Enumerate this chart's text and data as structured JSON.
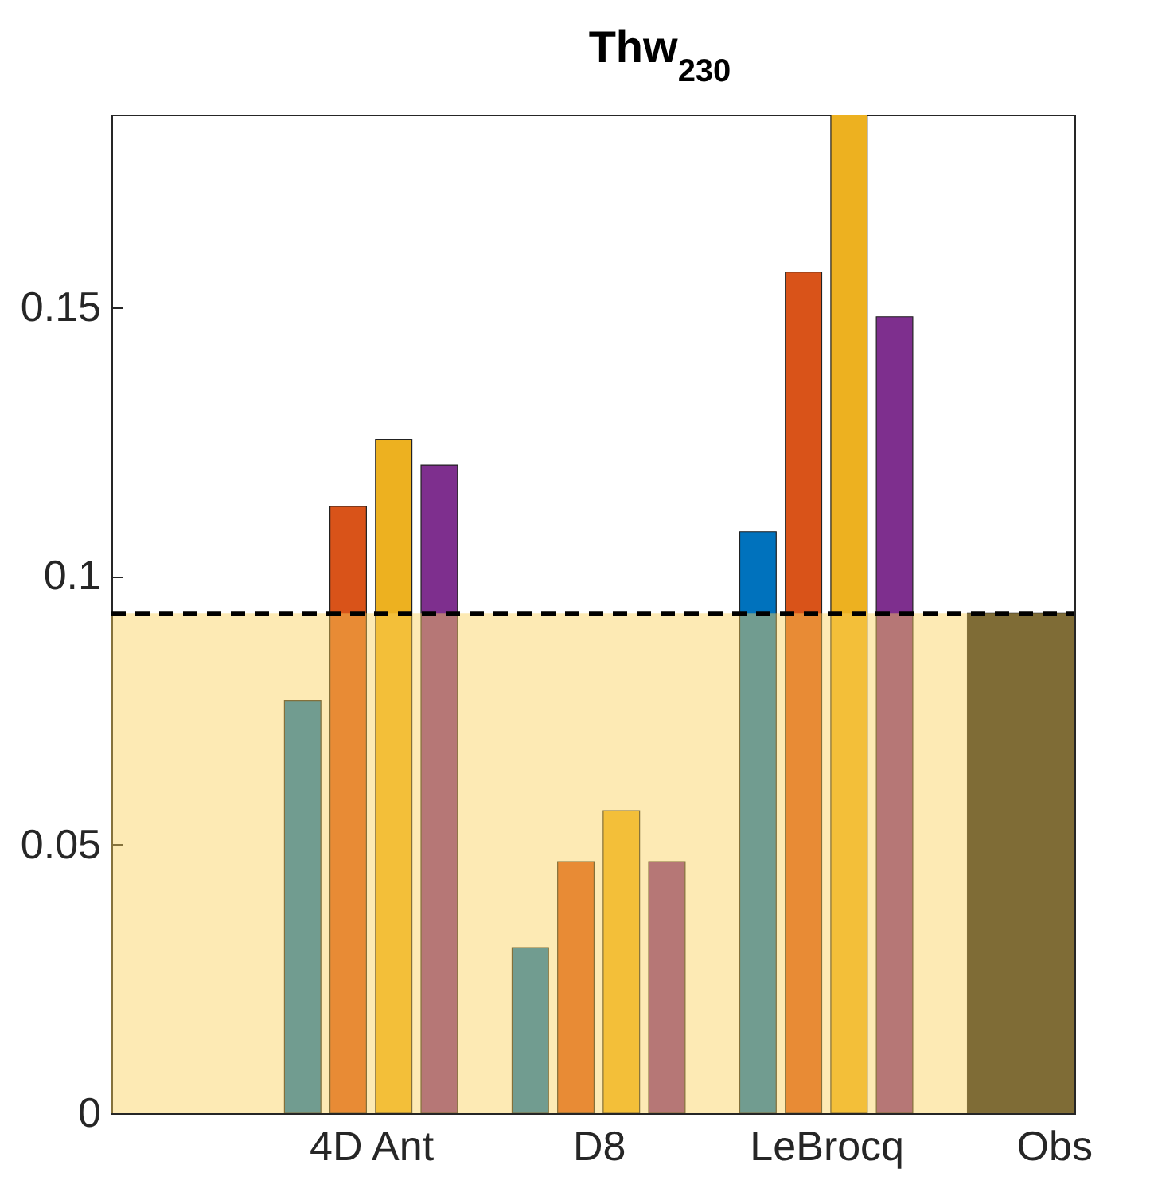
{
  "chart_data": {
    "type": "bar",
    "title": "Thw$_{230}$",
    "categories": [
      "4D Ant",
      "D8",
      "LeBrocq",
      "Obs"
    ],
    "series": [
      {
        "color": "#0072bd",
        "values": [
          0.0768,
          0.0308,
          0.1082,
          null
        ]
      },
      {
        "color": "#d95319",
        "values": [
          0.1129,
          0.0468,
          0.1565,
          null
        ]
      },
      {
        "color": "#edb120",
        "values": [
          0.1254,
          0.0563,
          0.1858,
          null
        ]
      },
      {
        "color": "#7e2f8e",
        "values": [
          0.1206,
          0.0468,
          0.1482,
          null
        ]
      },
      {
        "color": "#1a1a1a",
        "values": [
          null,
          null,
          null,
          0.093
        ]
      }
    ],
    "ylim": [
      0,
      0.1858
    ],
    "yticks": [
      0,
      0.05,
      0.1,
      0.15
    ],
    "ref_lines": [
      {
        "axis": "y",
        "value": 0.093,
        "line_style": "dashed",
        "color": "#000000"
      }
    ],
    "bands": [
      {
        "axis": "y",
        "from": 0,
        "to": 0.093,
        "color": "#fad059"
      }
    ],
    "grid": false,
    "legend": false
  }
}
